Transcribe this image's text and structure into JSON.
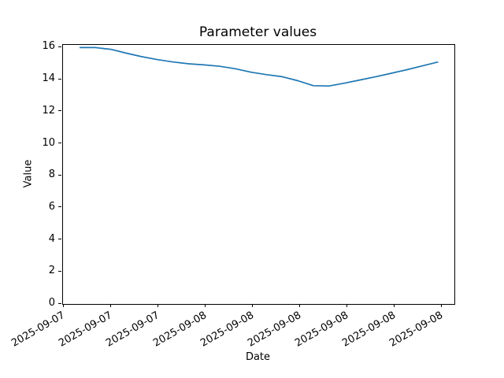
{
  "figure": {
    "background": "#ffffff"
  },
  "chart_data": {
    "type": "line",
    "title": "Parameter values",
    "xlabel": "Date",
    "ylabel": "Value",
    "x_tick_labels": [
      "2025-09-07",
      "2025-09-07",
      "2025-09-07",
      "2025-09-08",
      "2025-09-08",
      "2025-09-08",
      "2025-09-08",
      "2025-09-08",
      "2025-09-08"
    ],
    "y_tick_values": [
      0,
      2,
      4,
      6,
      8,
      10,
      12,
      14,
      16
    ],
    "ylim": [
      0,
      16.17
    ],
    "grid": false,
    "legend": false,
    "axis_color": "#000000",
    "text_color": "#000000",
    "series": [
      {
        "name": "Parameter values",
        "color": "#1f77b4",
        "values": [
          16.0,
          16.0,
          15.89,
          15.65,
          15.43,
          15.25,
          15.1,
          14.99,
          14.92,
          14.83,
          14.68,
          14.46,
          14.31,
          14.18,
          13.93,
          13.62,
          13.6,
          13.78,
          13.98,
          14.18,
          14.4,
          14.62,
          14.86,
          15.1
        ]
      }
    ]
  }
}
